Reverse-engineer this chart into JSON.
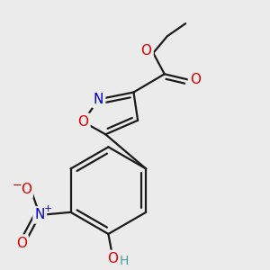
{
  "background_color": "#ebebeb",
  "bond_color": "#1a1a1a",
  "bond_width": 1.6,
  "atom_colors": {
    "O": "#dd0000",
    "N": "#0000cc",
    "H_teal": "#4a9a9a",
    "C": "#1a1a1a"
  },
  "font_size_atoms": 11,
  "font_size_small": 10,
  "figsize": [
    3.0,
    3.0
  ],
  "dpi": 100
}
